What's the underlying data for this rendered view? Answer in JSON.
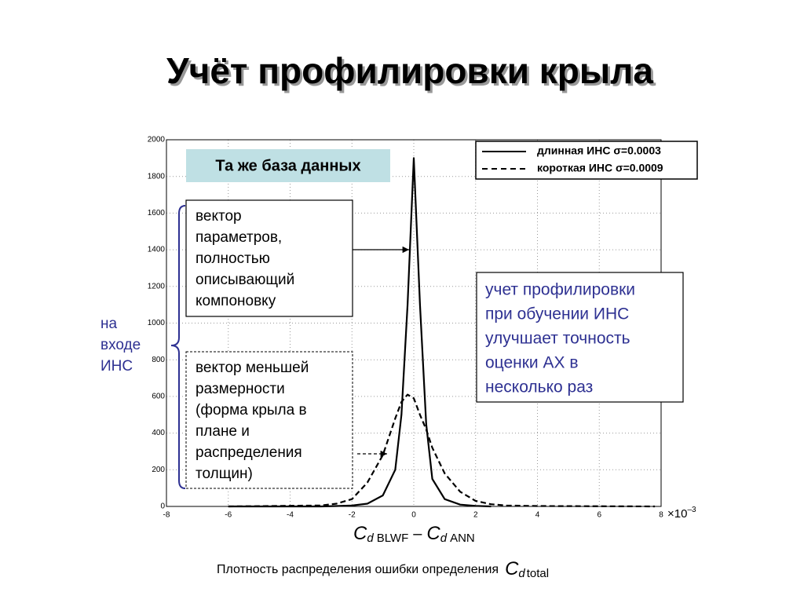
{
  "chart_data": {
    "type": "line",
    "title": "Учёт профилировки крыла",
    "x": [
      -6,
      -3,
      -2.5,
      -2,
      -1.5,
      -1,
      -0.6,
      -0.4,
      -0.2,
      0,
      0.2,
      0.4,
      0.6,
      1,
      1.5,
      2,
      2.5,
      3,
      4,
      7.8
    ],
    "series": [
      {
        "name": "длинная ИНС σ=0.0003",
        "color": "#000000",
        "dash": false,
        "values": [
          0,
          0,
          2,
          5,
          15,
          60,
          200,
          500,
          1100,
          1900,
          1100,
          450,
          150,
          40,
          10,
          3,
          0,
          null,
          null,
          null
        ]
      },
      {
        "name": "короткая ИНС σ=0.0009",
        "color": "#000000",
        "dash": true,
        "values": [
          0,
          5,
          15,
          40,
          130,
          280,
          480,
          570,
          610,
          590,
          500,
          420,
          320,
          180,
          80,
          30,
          12,
          5,
          2,
          0
        ]
      }
    ],
    "xlim": [
      -8,
      8
    ],
    "xticks": [
      -8,
      -6,
      -4,
      -2,
      0,
      2,
      4,
      6,
      8
    ],
    "ylim": [
      0,
      2000
    ],
    "yticks": [
      0,
      200,
      400,
      600,
      800,
      1000,
      1200,
      1400,
      1600,
      1800,
      2000
    ],
    "grid": true,
    "x_multiplier": {
      "base": "×10",
      "exp": "–3"
    },
    "xlabel": [
      "C",
      "d",
      "BLWF",
      "–",
      "C",
      "d",
      "ANN"
    ],
    "caption": [
      "Плотность распределения ошибки определения",
      "C",
      "d",
      "total"
    ],
    "annotations": {
      "same_db": "Та же база данных",
      "full_vector": [
        "вектор",
        "параметров,",
        "полностью",
        "описывающий",
        "компоновку"
      ],
      "reduced_vector": [
        "вектор меньшей",
        "размерности",
        "(форма крыла в",
        "плане и",
        "распределения",
        "толщин)"
      ],
      "conclusion": [
        "учет профилировки",
        "при обучении ИНС",
        "улучшает точность",
        "оценки АХ в",
        "несколько раз"
      ],
      "input": [
        "на",
        "входе",
        "ИНС"
      ]
    }
  }
}
